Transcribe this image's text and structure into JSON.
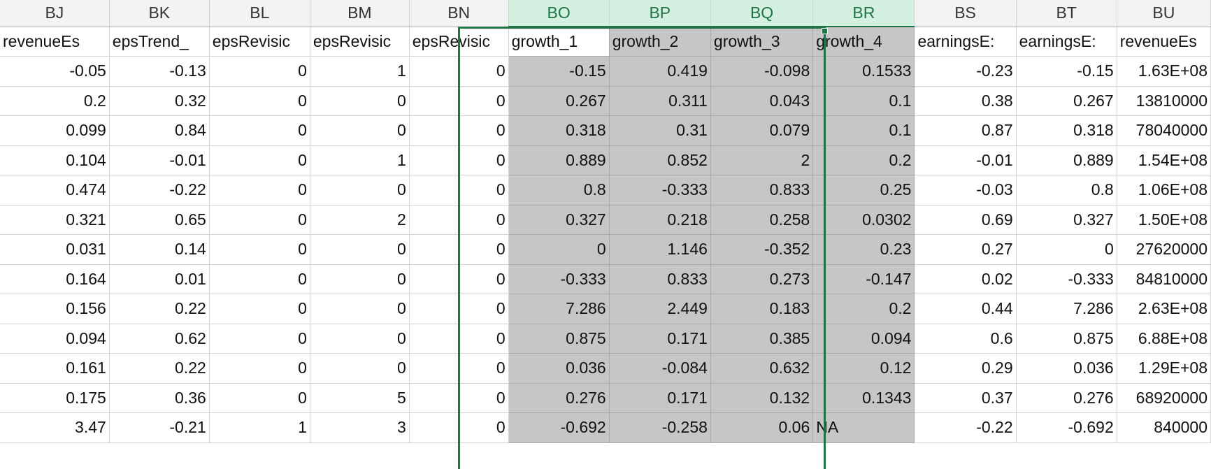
{
  "columns": [
    {
      "letter": "BJ",
      "header": "revenueEs"
    },
    {
      "letter": "BK",
      "header": "epsTrend_"
    },
    {
      "letter": "BL",
      "header": "epsRevisic"
    },
    {
      "letter": "BM",
      "header": "epsRevisic"
    },
    {
      "letter": "BN",
      "header": "epsRevisic"
    },
    {
      "letter": "BO",
      "header": "growth_1"
    },
    {
      "letter": "BP",
      "header": "growth_2"
    },
    {
      "letter": "BQ",
      "header": "growth_3"
    },
    {
      "letter": "BR",
      "header": "growth_4"
    },
    {
      "letter": "BS",
      "header": "earningsE:"
    },
    {
      "letter": "BT",
      "header": "earningsE:"
    },
    {
      "letter": "BU",
      "header": "revenueEs"
    }
  ],
  "selected_columns": [
    "BO",
    "BP",
    "BQ",
    "BR"
  ],
  "active_cell": "BO",
  "colors": {
    "selection_border": "#217346",
    "selected_header_bg": "#d3f0e0",
    "selected_cell_bg": "#c6c6c6"
  },
  "rows": [
    [
      "-0.05",
      "-0.13",
      "0",
      "1",
      "0",
      "-0.15",
      "0.419",
      "-0.098",
      "0.1533",
      "-0.23",
      "-0.15",
      "1.63E+08"
    ],
    [
      "0.2",
      "0.32",
      "0",
      "0",
      "0",
      "0.267",
      "0.311",
      "0.043",
      "0.1",
      "0.38",
      "0.267",
      "13810000"
    ],
    [
      "0.099",
      "0.84",
      "0",
      "0",
      "0",
      "0.318",
      "0.31",
      "0.079",
      "0.1",
      "0.87",
      "0.318",
      "78040000"
    ],
    [
      "0.104",
      "-0.01",
      "0",
      "1",
      "0",
      "0.889",
      "0.852",
      "2",
      "0.2",
      "-0.01",
      "0.889",
      "1.54E+08"
    ],
    [
      "0.474",
      "-0.22",
      "0",
      "0",
      "0",
      "0.8",
      "-0.333",
      "0.833",
      "0.25",
      "-0.03",
      "0.8",
      "1.06E+08"
    ],
    [
      "0.321",
      "0.65",
      "0",
      "2",
      "0",
      "0.327",
      "0.218",
      "0.258",
      "0.0302",
      "0.69",
      "0.327",
      "1.50E+08"
    ],
    [
      "0.031",
      "0.14",
      "0",
      "0",
      "0",
      "0",
      "1.146",
      "-0.352",
      "0.23",
      "0.27",
      "0",
      "27620000"
    ],
    [
      "0.164",
      "0.01",
      "0",
      "0",
      "0",
      "-0.333",
      "0.833",
      "0.273",
      "-0.147",
      "0.02",
      "-0.333",
      "84810000"
    ],
    [
      "0.156",
      "0.22",
      "0",
      "0",
      "0",
      "7.286",
      "2.449",
      "0.183",
      "0.2",
      "0.44",
      "7.286",
      "2.63E+08"
    ],
    [
      "0.094",
      "0.62",
      "0",
      "0",
      "0",
      "0.875",
      "0.171",
      "0.385",
      "0.094",
      "0.6",
      "0.875",
      "6.88E+08"
    ],
    [
      "0.161",
      "0.22",
      "0",
      "0",
      "0",
      "0.036",
      "-0.084",
      "0.632",
      "0.12",
      "0.29",
      "0.036",
      "1.29E+08"
    ],
    [
      "0.175",
      "0.36",
      "0",
      "5",
      "0",
      "0.276",
      "0.171",
      "0.132",
      "0.1343",
      "0.37",
      "0.276",
      "68920000"
    ],
    [
      "3.47",
      "-0.21",
      "1",
      "3",
      "0",
      "-0.692",
      "-0.258",
      "0.06",
      "NA",
      "-0.22",
      "-0.692",
      "840000"
    ]
  ]
}
